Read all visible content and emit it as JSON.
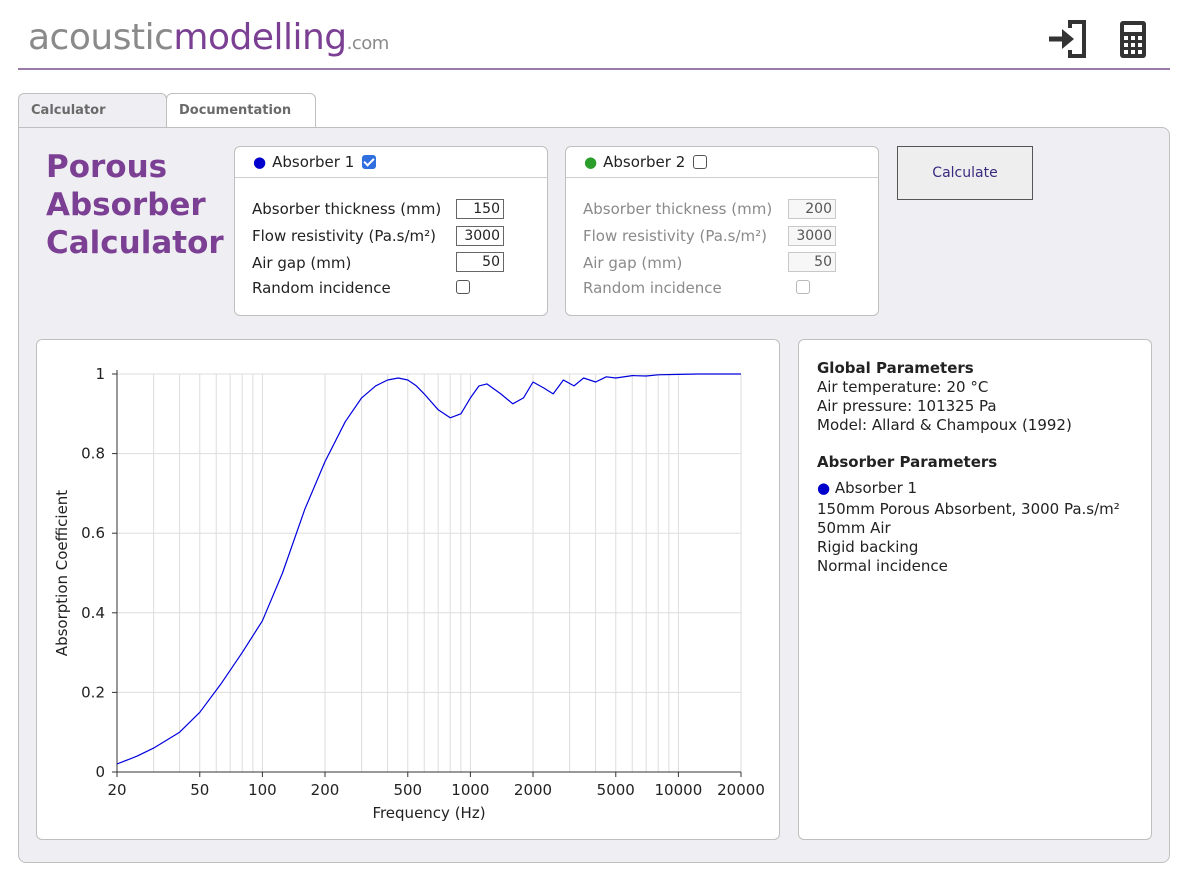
{
  "site": {
    "name_part1": "acoustic",
    "name_part2": "modelling",
    "name_part3": ".com"
  },
  "header": {
    "icons": [
      "login-icon",
      "calculator-icon"
    ]
  },
  "tabs": [
    {
      "label": "Calculator",
      "active": true
    },
    {
      "label": "Documentation",
      "active": false
    }
  ],
  "title": {
    "line1": "Porous",
    "line2": "Absorber",
    "line3": "Calculator"
  },
  "absorber1": {
    "heading": "Absorber 1",
    "dot_color": "#0000cc",
    "enabled": true,
    "thickness_label": "Absorber thickness (mm)",
    "thickness_value": "150",
    "flow_label": "Flow resistivity (Pa.s/m²)",
    "flow_value": "3000",
    "airgap_label": "Air gap (mm)",
    "airgap_value": "50",
    "random_label": "Random incidence",
    "random_checked": false
  },
  "absorber2": {
    "heading": "Absorber 2",
    "dot_color": "#2a9d2a",
    "enabled": false,
    "thickness_label": "Absorber thickness (mm)",
    "thickness_value": "200",
    "flow_label": "Flow resistivity (Pa.s/m²)",
    "flow_value": "3000",
    "airgap_label": "Air gap (mm)",
    "airgap_value": "50",
    "random_label": "Random incidence",
    "random_checked": false
  },
  "calculate_label": "Calculate",
  "info": {
    "global_heading": "Global Parameters",
    "air_temperature": "Air temperature: 20 °C",
    "air_pressure": "Air pressure: 101325 Pa",
    "model": "Model: Allard & Champoux (1992)",
    "absorber_heading": "Absorber Parameters",
    "absorber_name": "Absorber 1",
    "line1": "150mm Porous Absorbent, 3000 Pa.s/m²",
    "line2": "50mm Air",
    "line3": "Rigid backing",
    "line4": "Normal incidence"
  },
  "chart_data": {
    "type": "line",
    "xlabel": "Frequency (Hz)",
    "ylabel": "Absorption Coefficient",
    "x_scale": "log",
    "xlim": [
      20,
      20000
    ],
    "ylim": [
      0,
      1
    ],
    "x_ticks": [
      20,
      50,
      100,
      200,
      500,
      1000,
      2000,
      5000,
      10000,
      20000
    ],
    "x_tick_labels": [
      "20",
      "50",
      "100",
      "200",
      "500",
      "1000",
      "2000",
      "5000",
      "10000",
      "20000"
    ],
    "y_ticks": [
      0,
      0.2,
      0.4,
      0.6,
      0.8,
      1
    ],
    "y_tick_labels": [
      "0",
      "0.2",
      "0.4",
      "0.6",
      "0.8",
      "1"
    ],
    "grid": true,
    "series": [
      {
        "name": "Absorber 1",
        "color": "#0000dd",
        "x": [
          20,
          25,
          30,
          40,
          50,
          63,
          80,
          100,
          125,
          160,
          200,
          250,
          300,
          350,
          400,
          450,
          500,
          550,
          600,
          700,
          800,
          900,
          1000,
          1100,
          1200,
          1400,
          1600,
          1800,
          2000,
          2250,
          2500,
          2800,
          3150,
          3500,
          4000,
          4500,
          5000,
          6000,
          7000,
          8000,
          10000,
          12500,
          16000,
          20000
        ],
        "y": [
          0.02,
          0.04,
          0.06,
          0.1,
          0.15,
          0.22,
          0.3,
          0.38,
          0.5,
          0.66,
          0.78,
          0.88,
          0.94,
          0.97,
          0.985,
          0.99,
          0.985,
          0.97,
          0.95,
          0.91,
          0.89,
          0.9,
          0.94,
          0.97,
          0.975,
          0.95,
          0.925,
          0.94,
          0.98,
          0.965,
          0.95,
          0.985,
          0.97,
          0.99,
          0.98,
          0.993,
          0.99,
          0.996,
          0.995,
          0.998,
          0.999,
          1.0,
          1.0,
          1.0
        ]
      }
    ]
  }
}
